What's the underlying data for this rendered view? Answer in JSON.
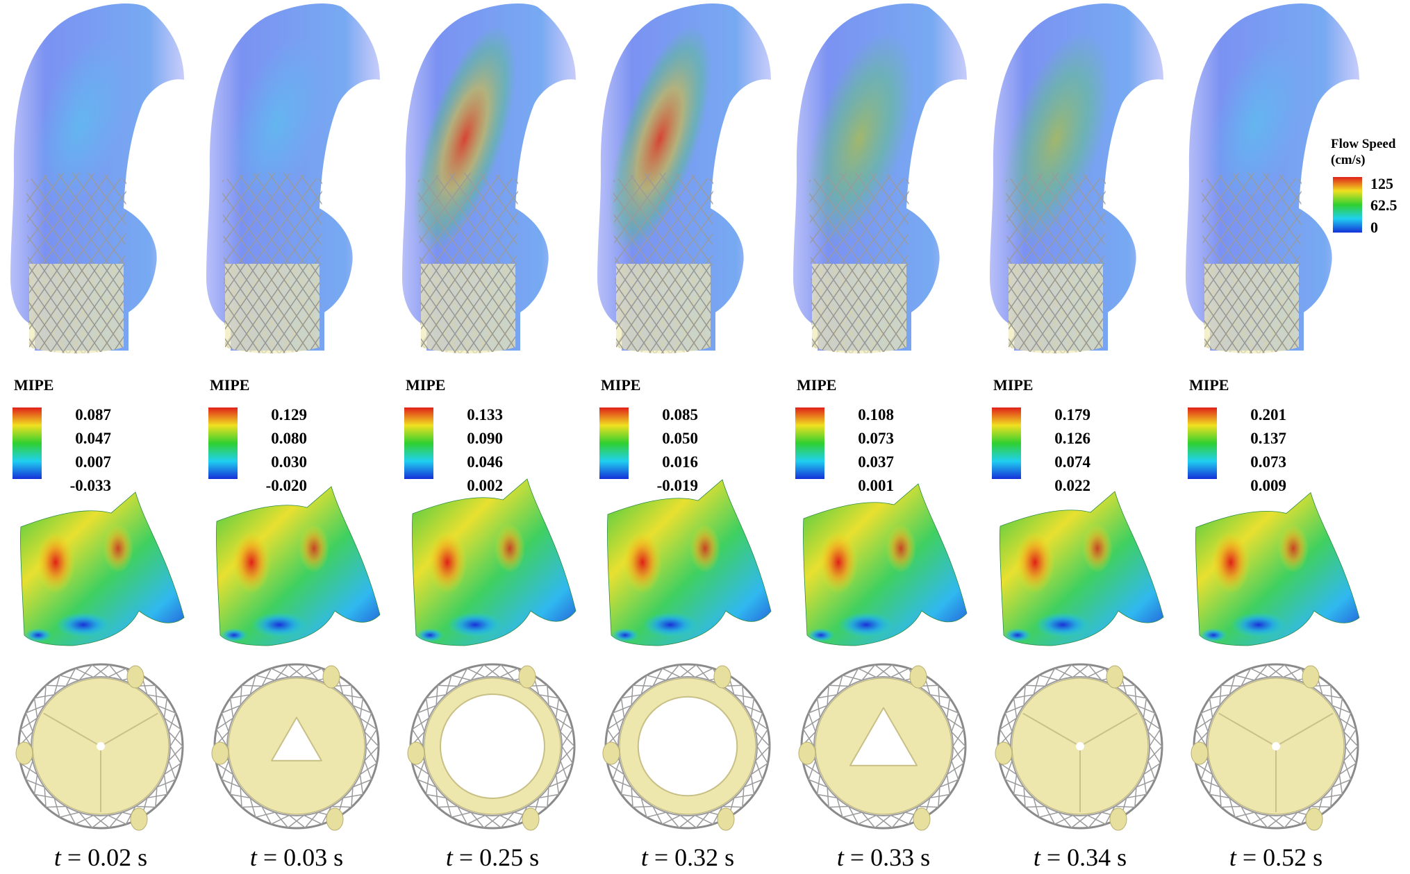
{
  "flow_legend": {
    "title_line1": "Flow Speed",
    "title_line2": "(cm/s)",
    "ticks": [
      "125",
      "62.5",
      "0"
    ]
  },
  "mipe_label": "MIPE",
  "panels": [
    {
      "time_var": "t",
      "time_value": "= 0.02 s",
      "mipe_ticks": [
        "0.087",
        "0.047",
        "0.007",
        "-0.033"
      ],
      "flow_level": 0.35,
      "opening": 0.05,
      "orifice": "closed"
    },
    {
      "time_var": "t",
      "time_value": "= 0.03 s",
      "mipe_ticks": [
        "0.129",
        "0.080",
        "0.030",
        "-0.020"
      ],
      "flow_level": 0.4,
      "opening": 0.45,
      "orifice": "triangle"
    },
    {
      "time_var": "t",
      "time_value": "= 0.25 s",
      "mipe_ticks": [
        "0.133",
        "0.090",
        "0.046",
        "0.002"
      ],
      "flow_level": 0.95,
      "opening": 1.0,
      "orifice": "open"
    },
    {
      "time_var": "t",
      "time_value": "= 0.32 s",
      "mipe_ticks": [
        "0.085",
        "0.050",
        "0.016",
        "-0.019"
      ],
      "flow_level": 0.85,
      "opening": 0.95,
      "orifice": "open"
    },
    {
      "time_var": "t",
      "time_value": "= 0.33 s",
      "mipe_ticks": [
        "0.108",
        "0.073",
        "0.037",
        "0.001"
      ],
      "flow_level": 0.7,
      "opening": 0.65,
      "orifice": "triangle"
    },
    {
      "time_var": "t",
      "time_value": "= 0.34 s",
      "mipe_ticks": [
        "0.179",
        "0.126",
        "0.074",
        "0.022"
      ],
      "flow_level": 0.6,
      "opening": 0.1,
      "orifice": "closed"
    },
    {
      "time_var": "t",
      "time_value": "= 0.52 s",
      "mipe_ticks": [
        "0.201",
        "0.137",
        "0.073",
        "0.009"
      ],
      "flow_level": 0.3,
      "opening": 0.02,
      "orifice": "closed"
    }
  ],
  "colors": {
    "jet_top": "#e0201a",
    "jet_upper": "#f0e020",
    "jet_mid": "#30d030",
    "jet_lower": "#20d0f0",
    "jet_bottom": "#1530d8",
    "aorta_base": "#6d7df0",
    "stent": "#9a9a9a",
    "leaflet": "#f0ebb0"
  }
}
